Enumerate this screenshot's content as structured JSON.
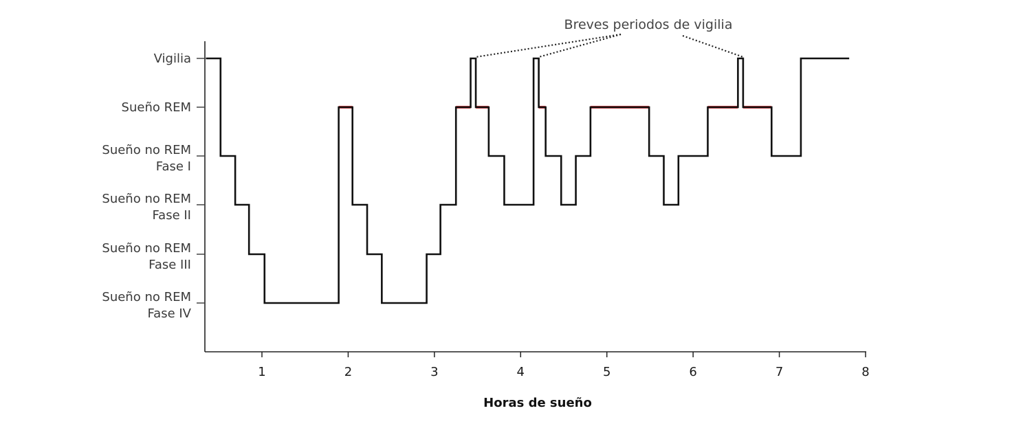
{
  "chart_data": {
    "type": "line",
    "xlabel": "Horas de sueño",
    "ylabel": "",
    "xlim": [
      0.35,
      8
    ],
    "x_ticks": [
      1,
      2,
      3,
      4,
      5,
      6,
      7,
      8
    ],
    "stages": [
      {
        "key": "wake",
        "lines": [
          "Vigilia"
        ],
        "color": "#333333"
      },
      {
        "key": "rem",
        "lines": [
          "Sueño REM"
        ],
        "color": "#e0474c"
      },
      {
        "key": "n1",
        "lines": [
          "Sueño no REM",
          "Fase I"
        ],
        "color": "#333333"
      },
      {
        "key": "n2",
        "lines": [
          "Sueño no REM",
          "Fase II"
        ],
        "color": "#333333"
      },
      {
        "key": "n3",
        "lines": [
          "Sueño no REM",
          "Fase III"
        ],
        "color": "#333333"
      },
      {
        "key": "n4",
        "lines": [
          "Sueño no REM",
          "Fase IV"
        ],
        "color": "#333333"
      }
    ],
    "hypnogram_color": "#111111",
    "rem_color": "#e0474c",
    "steps": [
      {
        "x": 0.35,
        "stage": "wake"
      },
      {
        "x": 0.52,
        "stage": "n1"
      },
      {
        "x": 0.69,
        "stage": "n2"
      },
      {
        "x": 0.85,
        "stage": "n3"
      },
      {
        "x": 1.03,
        "stage": "n4"
      },
      {
        "x": 1.89,
        "stage": "rem"
      },
      {
        "x": 2.05,
        "stage": "n2"
      },
      {
        "x": 2.22,
        "stage": "n3"
      },
      {
        "x": 2.39,
        "stage": "n4"
      },
      {
        "x": 2.91,
        "stage": "n3"
      },
      {
        "x": 3.07,
        "stage": "n2"
      },
      {
        "x": 3.25,
        "stage": "rem"
      },
      {
        "x": 3.42,
        "stage": "wake"
      },
      {
        "x": 3.48,
        "stage": "rem"
      },
      {
        "x": 3.63,
        "stage": "n1"
      },
      {
        "x": 3.81,
        "stage": "n2"
      },
      {
        "x": 4.15,
        "stage": "wake"
      },
      {
        "x": 4.21,
        "stage": "rem"
      },
      {
        "x": 4.29,
        "stage": "n1"
      },
      {
        "x": 4.47,
        "stage": "n2"
      },
      {
        "x": 4.64,
        "stage": "n1"
      },
      {
        "x": 4.81,
        "stage": "rem"
      },
      {
        "x": 5.49,
        "stage": "n1"
      },
      {
        "x": 5.66,
        "stage": "n2"
      },
      {
        "x": 5.83,
        "stage": "n1"
      },
      {
        "x": 6.17,
        "stage": "rem"
      },
      {
        "x": 6.52,
        "stage": "wake"
      },
      {
        "x": 6.58,
        "stage": "rem"
      },
      {
        "x": 6.91,
        "stage": "n1"
      },
      {
        "x": 7.25,
        "stage": "wake"
      },
      {
        "x": 7.81,
        "stage": "end"
      }
    ],
    "annotation": {
      "text": "Breves periodos de vigilia",
      "targets": [
        3.48,
        4.21,
        6.58
      ]
    }
  }
}
